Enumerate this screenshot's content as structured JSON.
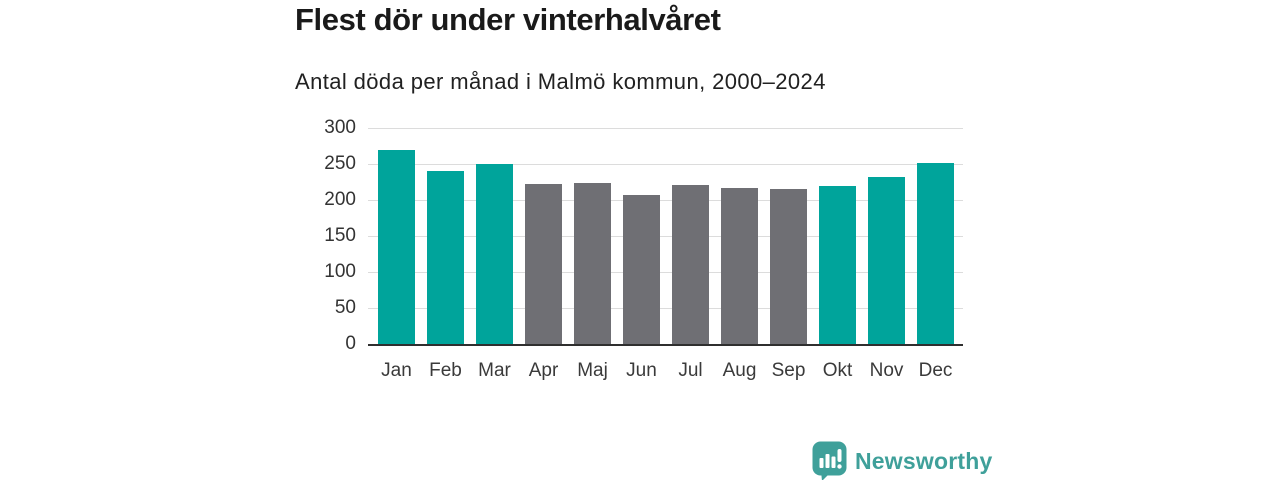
{
  "header": {
    "title": "Flest dör under vinterhalvåret",
    "subtitle": "Antal döda per månad i Malmö kommun, 2000–2024"
  },
  "chart_data": {
    "type": "bar",
    "categories": [
      "Jan",
      "Feb",
      "Mar",
      "Apr",
      "Maj",
      "Jun",
      "Jul",
      "Aug",
      "Sep",
      "Okt",
      "Nov",
      "Dec"
    ],
    "values": [
      270,
      240,
      250,
      222,
      224,
      207,
      221,
      216,
      215,
      219,
      232,
      251
    ],
    "bar_groups": [
      "winter",
      "winter",
      "winter",
      "summer",
      "summer",
      "summer",
      "summer",
      "summer",
      "summer",
      "winter",
      "winter",
      "winter"
    ],
    "highlighted_winter_months": [
      "Jan",
      "Feb",
      "Mar",
      "Okt",
      "Nov",
      "Dec"
    ],
    "title": "Flest dör under vinterhalvåret",
    "subtitle": "Antal döda per månad i Malmö kommun, 2000–2024",
    "xlabel": "",
    "ylabel": "",
    "ylim": [
      0,
      300
    ],
    "yticks": [
      0,
      50,
      100,
      150,
      200,
      250,
      300
    ],
    "grid": true,
    "legend": false
  },
  "colors": {
    "winter_bar": "#00a49b",
    "summer_bar": "#6f6f74",
    "gridline": "#dcdcdc",
    "axis": "#2f2f2f",
    "logo_teal": "#3fa09a"
  },
  "footer": {
    "logo_text": "Newsworthy"
  }
}
